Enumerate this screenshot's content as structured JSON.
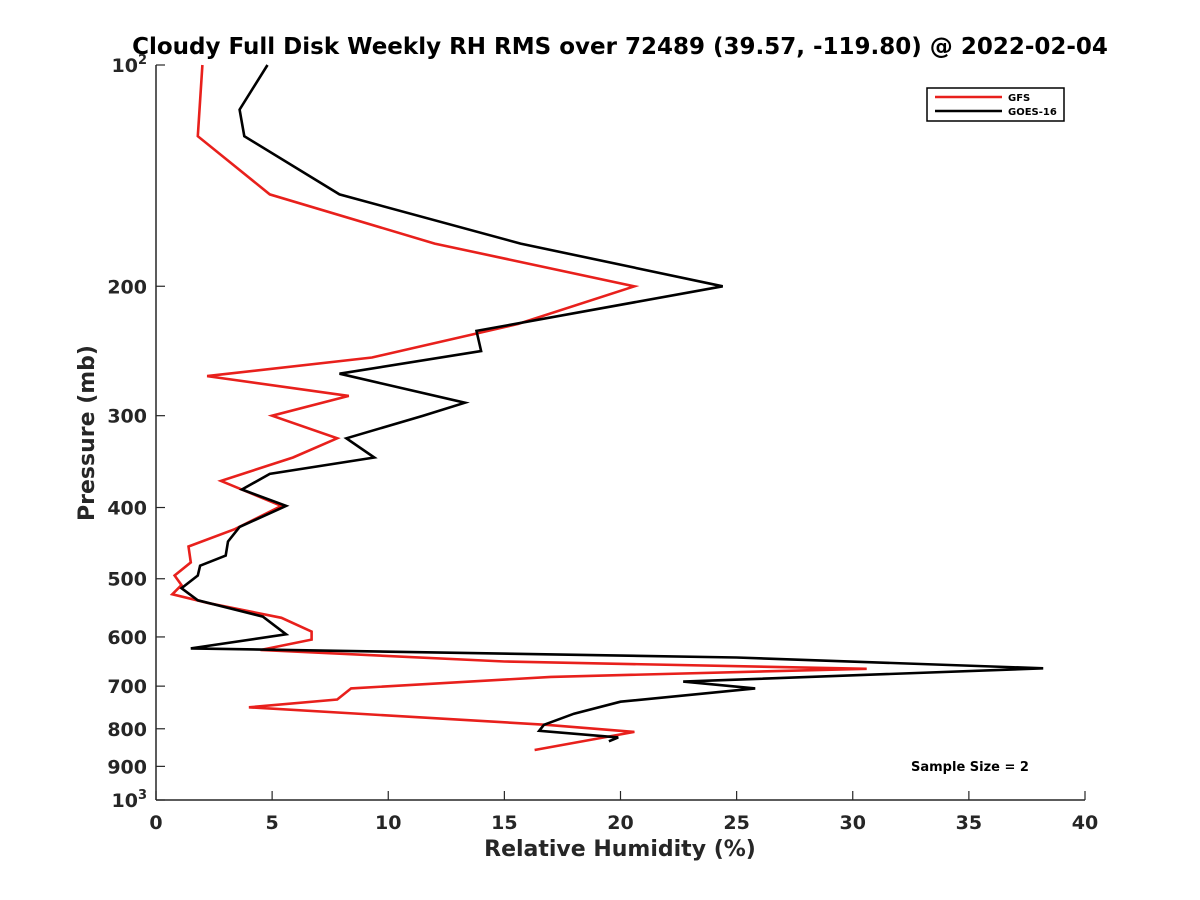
{
  "chart_data": {
    "type": "line",
    "title": "Cloudy Full Disk Weekly RH RMS over 72489 (39.57, -119.80) @ 2022-02-04",
    "xlabel": "Relative Humidity (%)",
    "ylabel": "Pressure (mb)",
    "xlim": [
      0,
      40
    ],
    "ylim": [
      100,
      1000
    ],
    "y_scale": "log",
    "y_reversed": true,
    "x_ticks": [
      0,
      5,
      10,
      15,
      20,
      25,
      30,
      35,
      40
    ],
    "y_ticks": [
      {
        "value": 100,
        "base": "10",
        "exp": "2"
      },
      {
        "value": 200,
        "label": "200"
      },
      {
        "value": 300,
        "label": "300"
      },
      {
        "value": 400,
        "label": "400"
      },
      {
        "value": 500,
        "label": "500"
      },
      {
        "value": 600,
        "label": "600"
      },
      {
        "value": 700,
        "label": "700"
      },
      {
        "value": 800,
        "label": "800"
      },
      {
        "value": 900,
        "label": "900"
      },
      {
        "value": 1000,
        "base": "10",
        "exp": "3"
      }
    ],
    "grid": false,
    "legend_position": "top-right",
    "series": [
      {
        "name": "GFS",
        "color": "#e8201c",
        "points": [
          [
            2.0,
            100
          ],
          [
            1.8,
            125
          ],
          [
            4.9,
            150
          ],
          [
            12.0,
            175
          ],
          [
            20.6,
            200
          ],
          [
            15.6,
            225
          ],
          [
            9.3,
            250
          ],
          [
            2.2,
            265
          ],
          [
            8.3,
            282
          ],
          [
            5.0,
            300
          ],
          [
            7.8,
            322
          ],
          [
            5.9,
            342
          ],
          [
            2.8,
            368
          ],
          [
            5.4,
            398
          ],
          [
            3.4,
            428
          ],
          [
            1.4,
            452
          ],
          [
            1.5,
            475
          ],
          [
            0.8,
            495
          ],
          [
            1.1,
            510
          ],
          [
            0.7,
            525
          ],
          [
            2.3,
            540
          ],
          [
            5.4,
            565
          ],
          [
            6.7,
            590
          ],
          [
            6.7,
            605
          ],
          [
            4.5,
            625
          ],
          [
            15.0,
            648
          ],
          [
            30.6,
            663
          ],
          [
            17.0,
            680
          ],
          [
            8.4,
            705
          ],
          [
            7.8,
            730
          ],
          [
            4.0,
            748
          ],
          [
            16.8,
            790
          ],
          [
            20.6,
            808
          ],
          [
            16.3,
            855
          ]
        ]
      },
      {
        "name": "GOES-16",
        "color": "#000000",
        "points": [
          [
            4.8,
            100
          ],
          [
            3.6,
            115
          ],
          [
            3.8,
            125
          ],
          [
            7.9,
            150
          ],
          [
            15.7,
            175
          ],
          [
            24.4,
            200
          ],
          [
            13.8,
            230
          ],
          [
            14.0,
            245
          ],
          [
            7.9,
            263
          ],
          [
            13.3,
            288
          ],
          [
            11.5,
            300
          ],
          [
            8.2,
            322
          ],
          [
            9.4,
            342
          ],
          [
            4.9,
            360
          ],
          [
            3.7,
            378
          ],
          [
            5.6,
            398
          ],
          [
            3.6,
            425
          ],
          [
            3.1,
            445
          ],
          [
            3.0,
            465
          ],
          [
            1.9,
            480
          ],
          [
            1.8,
            495
          ],
          [
            1.1,
            515
          ],
          [
            1.8,
            535
          ],
          [
            4.6,
            563
          ],
          [
            5.6,
            595
          ],
          [
            1.5,
            622
          ],
          [
            25.0,
            640
          ],
          [
            38.2,
            662
          ],
          [
            22.7,
            690
          ],
          [
            25.8,
            705
          ],
          [
            20.0,
            735
          ],
          [
            18.0,
            763
          ],
          [
            16.7,
            790
          ],
          [
            16.5,
            805
          ],
          [
            19.9,
            822
          ],
          [
            19.5,
            832
          ]
        ]
      }
    ],
    "annotations": [
      {
        "text": "Sample Size = 2",
        "position": "bottom-right"
      }
    ]
  }
}
